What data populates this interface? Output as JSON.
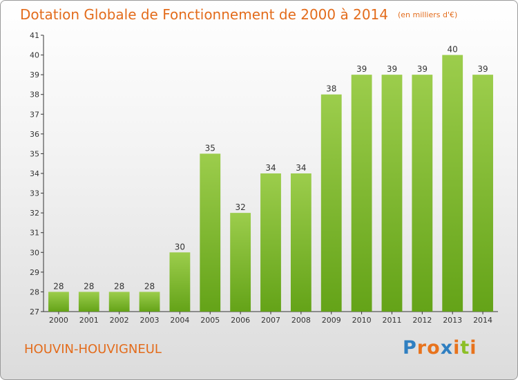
{
  "chart_data": {
    "type": "bar",
    "title": "Dotation Globale de Fonctionnement de 2000 à 2014",
    "unit_note": "(en milliers d'€)",
    "categories": [
      "2000",
      "2001",
      "2002",
      "2003",
      "2004",
      "2005",
      "2006",
      "2007",
      "2008",
      "2009",
      "2010",
      "2011",
      "2012",
      "2013",
      "2014"
    ],
    "values": [
      28,
      28,
      28,
      28,
      30,
      35,
      32,
      34,
      34,
      38,
      39,
      39,
      39,
      40,
      39
    ],
    "data_labels": [
      "28",
      "28",
      "28",
      "28",
      "30",
      "35",
      "32",
      "34",
      "34",
      "38",
      "39",
      "39",
      "39",
      "40",
      "39"
    ],
    "y_ticks": [
      "27",
      "28",
      "29",
      "30",
      "31",
      "32",
      "33",
      "34",
      "35",
      "36",
      "37",
      "38",
      "39",
      "40",
      "41"
    ],
    "ylim": [
      27,
      41
    ],
    "xlabel": "",
    "ylabel": "",
    "grid": false,
    "bar_color": "#7fbb2f"
  },
  "footer": {
    "commune": "HOUVIN-HOUVIGNEUL",
    "logo_letters": [
      "P",
      "r",
      "o",
      "x",
      "i",
      "t",
      "i"
    ],
    "logo_colors": [
      "#2f7fc1",
      "#e8731d",
      "#e8731d",
      "#2f7fc1",
      "#e8731d",
      "#8cbf26",
      "#e8731d"
    ]
  }
}
